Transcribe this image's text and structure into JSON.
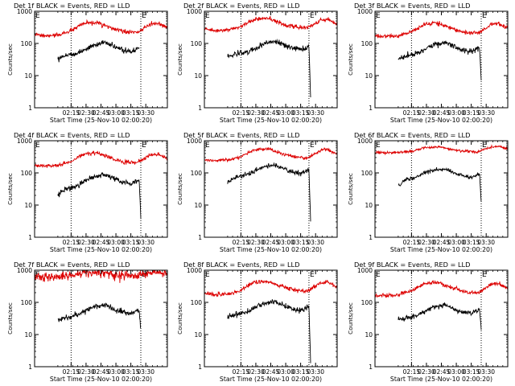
{
  "shared": {
    "ylabel": "Counts/sec",
    "xlabel": "Start Time (25-Nov-10 02:00:20)",
    "x_tick_labels": [
      "02:15",
      "02:30",
      "02:45",
      "03:00",
      "03:15",
      "03:30"
    ],
    "y_tick_labels": [
      "1",
      "10",
      "100",
      "1000"
    ],
    "marker_labels": [
      "E",
      "E"
    ],
    "colors": {
      "events": "#000000",
      "lld": "#dd0000",
      "axes": "#000000"
    }
  },
  "chart_data": [
    {
      "type": "line",
      "title": "Det 1f BLACK = Events, RED = LLD",
      "xlabel": "Start Time (25-Nov-10 02:00:20)",
      "ylabel": "Counts/sec",
      "x_unit": "minutes after 02:00:20",
      "xlim": [
        5,
        45
      ],
      "ylim": [
        1,
        1000
      ],
      "y_scale": "log",
      "dotted_markers_x": [
        16,
        37
      ],
      "series": [
        {
          "color": "#dd0000",
          "noise": 0.03,
          "x": [
            5,
            8,
            12,
            16,
            20,
            24,
            28,
            32,
            36,
            40,
            42,
            45
          ],
          "y": [
            190,
            170,
            180,
            250,
            420,
            440,
            300,
            230,
            220,
            400,
            430,
            300
          ]
        },
        {
          "color": "#000000",
          "noise": 0.04,
          "x": [
            12,
            14,
            18,
            22,
            26,
            30,
            34,
            36.5
          ],
          "y": [
            35,
            42,
            50,
            80,
            110,
            70,
            55,
            70
          ]
        }
      ]
    },
    {
      "type": "line",
      "title": "Det 2f BLACK = Events, RED = LLD",
      "xlabel": "Start Time (25-Nov-10 02:00:20)",
      "ylabel": "Counts/sec",
      "x_unit": "minutes after 02:00:20",
      "xlim": [
        5,
        45
      ],
      "ylim": [
        1,
        1000
      ],
      "y_scale": "log",
      "dotted_markers_x": [
        16,
        36.5
      ],
      "series": [
        {
          "color": "#dd0000",
          "noise": 0.03,
          "x": [
            5,
            8,
            12,
            16,
            20,
            24,
            28,
            32,
            36,
            40,
            42,
            45
          ],
          "y": [
            280,
            250,
            260,
            340,
            560,
            600,
            420,
            330,
            300,
            520,
            560,
            400
          ]
        },
        {
          "color": "#000000",
          "noise": 0.04,
          "x": [
            12,
            14,
            18,
            22,
            26,
            30,
            34,
            36.5,
            37
          ],
          "y": [
            40,
            45,
            55,
            90,
            120,
            80,
            65,
            80,
            2
          ]
        }
      ]
    },
    {
      "type": "line",
      "title": "Det 3f BLACK = Events, RED = LLD",
      "xlabel": "Start Time (25-Nov-10 02:00:20)",
      "ylabel": "Counts/sec",
      "x_unit": "minutes after 02:00:20",
      "xlim": [
        5,
        45
      ],
      "ylim": [
        1,
        1000
      ],
      "y_scale": "log",
      "dotted_markers_x": [
        16,
        37
      ],
      "series": [
        {
          "color": "#dd0000",
          "noise": 0.03,
          "x": [
            5,
            8,
            12,
            16,
            20,
            24,
            28,
            32,
            36,
            40,
            42,
            45
          ],
          "y": [
            170,
            165,
            170,
            230,
            400,
            430,
            300,
            220,
            210,
            380,
            420,
            290
          ]
        },
        {
          "color": "#000000",
          "noise": 0.04,
          "x": [
            12,
            14,
            18,
            22,
            26,
            30,
            34,
            36.5,
            37
          ],
          "y": [
            30,
            40,
            50,
            85,
            110,
            70,
            55,
            75,
            8
          ]
        }
      ]
    },
    {
      "type": "line",
      "title": "Det 4f BLACK = Events, RED = LLD",
      "xlabel": "Start Time (25-Nov-10 02:00:20)",
      "ylabel": "Counts/sec",
      "x_unit": "minutes after 02:00:20",
      "xlim": [
        5,
        45
      ],
      "ylim": [
        1,
        1000
      ],
      "y_scale": "log",
      "dotted_markers_x": [
        16,
        37
      ],
      "series": [
        {
          "color": "#dd0000",
          "noise": 0.03,
          "x": [
            5,
            8,
            12,
            16,
            20,
            24,
            28,
            32,
            36,
            40,
            42,
            45
          ],
          "y": [
            170,
            160,
            170,
            230,
            390,
            420,
            290,
            220,
            210,
            360,
            400,
            280
          ]
        },
        {
          "color": "#000000",
          "noise": 0.04,
          "x": [
            12,
            14,
            18,
            22,
            26,
            30,
            34,
            36.5,
            37
          ],
          "y": [
            20,
            30,
            40,
            70,
            90,
            60,
            45,
            60,
            4
          ]
        }
      ]
    },
    {
      "type": "line",
      "title": "Det 5f BLACK = Events, RED = LLD",
      "xlabel": "Start Time (25-Nov-10 02:00:20)",
      "ylabel": "Counts/sec",
      "x_unit": "minutes after 02:00:20",
      "xlim": [
        5,
        45
      ],
      "ylim": [
        1,
        1000
      ],
      "y_scale": "log",
      "dotted_markers_x": [
        16,
        36.5
      ],
      "series": [
        {
          "color": "#dd0000",
          "noise": 0.025,
          "x": [
            5,
            8,
            12,
            16,
            20,
            24,
            28,
            32,
            36,
            40,
            42,
            45
          ],
          "y": [
            260,
            240,
            250,
            320,
            520,
            560,
            400,
            320,
            290,
            500,
            540,
            380
          ]
        },
        {
          "color": "#000000",
          "noise": 0.035,
          "x": [
            12,
            14,
            18,
            22,
            26,
            30,
            34,
            36.5,
            37
          ],
          "y": [
            50,
            70,
            90,
            140,
            170,
            120,
            95,
            130,
            3
          ]
        }
      ]
    },
    {
      "type": "line",
      "title": "Det 6f BLACK = Events, RED = LLD",
      "xlabel": "Start Time (25-Nov-10 02:00:20)",
      "ylabel": "Counts/sec",
      "x_unit": "minutes after 02:00:20",
      "xlim": [
        5,
        45
      ],
      "ylim": [
        1,
        1000
      ],
      "y_scale": "log",
      "dotted_markers_x": [
        16,
        37
      ],
      "series": [
        {
          "color": "#dd0000",
          "noise": 0.02,
          "x": [
            5,
            8,
            12,
            16,
            20,
            24,
            28,
            32,
            36,
            40,
            42,
            45
          ],
          "y": [
            430,
            420,
            430,
            470,
            600,
            640,
            540,
            470,
            450,
            640,
            680,
            560
          ]
        },
        {
          "color": "#000000",
          "noise": 0.03,
          "x": [
            12,
            14,
            18,
            22,
            26,
            30,
            34,
            36.5,
            37
          ],
          "y": [
            40,
            60,
            80,
            120,
            130,
            90,
            70,
            100,
            12
          ]
        }
      ]
    },
    {
      "type": "line",
      "title": "Det 7f BLACK = Events, RED = LLD",
      "xlabel": "Start Time (25-Nov-10 02:00:20)",
      "ylabel": "Counts/sec",
      "x_unit": "minutes after 02:00:20",
      "xlim": [
        5,
        45
      ],
      "ylim": [
        1,
        1000
      ],
      "y_scale": "log",
      "dotted_markers_x": [
        16,
        37
      ],
      "series": [
        {
          "color": "#dd0000",
          "noise": 0.07,
          "x": [
            5,
            8,
            12,
            16,
            20,
            24,
            28,
            32,
            36,
            40,
            42,
            45
          ],
          "y": [
            620,
            600,
            620,
            700,
            850,
            880,
            760,
            680,
            660,
            820,
            860,
            740
          ]
        },
        {
          "color": "#000000",
          "noise": 0.04,
          "x": [
            12,
            14,
            18,
            22,
            26,
            30,
            34,
            36.5,
            37
          ],
          "y": [
            28,
            32,
            40,
            70,
            85,
            55,
            45,
            60,
            15
          ]
        }
      ]
    },
    {
      "type": "line",
      "title": "Det 8f BLACK = Events, RED = LLD",
      "xlabel": "Start Time (25-Nov-10 02:00:20)",
      "ylabel": "Counts/sec",
      "x_unit": "minutes after 02:00:20",
      "xlim": [
        5,
        45
      ],
      "ylim": [
        1,
        1000
      ],
      "y_scale": "log",
      "dotted_markers_x": [
        16,
        36.5
      ],
      "series": [
        {
          "color": "#dd0000",
          "noise": 0.03,
          "x": [
            5,
            8,
            12,
            16,
            20,
            24,
            28,
            32,
            36,
            40,
            42,
            45
          ],
          "y": [
            190,
            175,
            180,
            240,
            420,
            450,
            320,
            240,
            220,
            400,
            430,
            300
          ]
        },
        {
          "color": "#000000",
          "noise": 0.04,
          "x": [
            12,
            14,
            18,
            22,
            26,
            30,
            34,
            36.5,
            37
          ],
          "y": [
            35,
            40,
            50,
            85,
            110,
            70,
            55,
            75,
            1.5
          ]
        }
      ]
    },
    {
      "type": "line",
      "title": "Det 9f BLACK = Events, RED = LLD",
      "xlabel": "Start Time (25-Nov-10 02:00:20)",
      "ylabel": "Counts/sec",
      "x_unit": "minutes after 02:00:20",
      "xlim": [
        5,
        45
      ],
      "ylim": [
        1,
        1000
      ],
      "y_scale": "log",
      "dotted_markers_x": [
        16,
        37
      ],
      "series": [
        {
          "color": "#dd0000",
          "noise": 0.03,
          "x": [
            5,
            8,
            12,
            16,
            20,
            24,
            28,
            32,
            36,
            40,
            42,
            45
          ],
          "y": [
            170,
            160,
            170,
            230,
            390,
            420,
            290,
            210,
            200,
            360,
            400,
            280
          ]
        },
        {
          "color": "#000000",
          "noise": 0.04,
          "x": [
            12,
            14,
            18,
            22,
            26,
            30,
            34,
            36.5,
            37
          ],
          "y": [
            28,
            32,
            40,
            70,
            85,
            55,
            45,
            60,
            15
          ]
        }
      ]
    }
  ]
}
